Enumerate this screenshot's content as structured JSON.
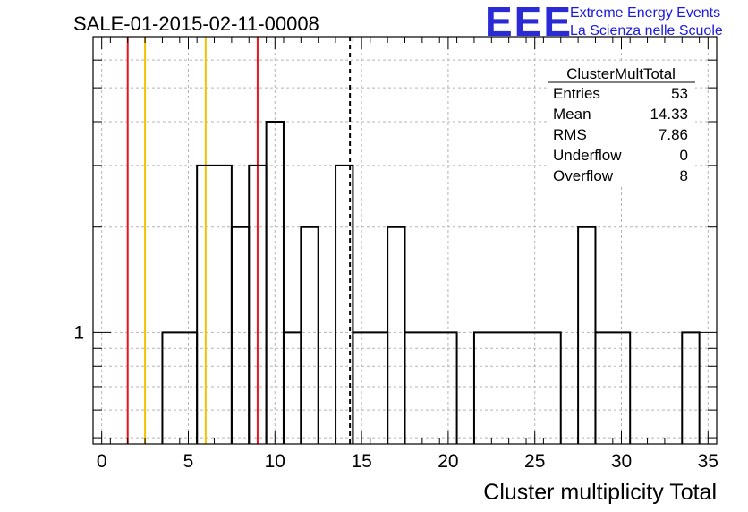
{
  "chart_data": {
    "type": "histogram",
    "title": "SALE-01-2015-02-11-00008",
    "xlabel": "Cluster multiplicity Total",
    "ylabel": "",
    "y_scale": "log",
    "xlim": [
      -0.5,
      35.5
    ],
    "ylim": [
      0.48,
      7.0
    ],
    "grid": true,
    "x_ticks": [
      0,
      5,
      10,
      15,
      20,
      25,
      30,
      35
    ],
    "y_tick_labels": [
      {
        "value": 1,
        "label": "1"
      }
    ],
    "bins": [
      {
        "x0": 3.5,
        "x1": 5.5,
        "count": 1
      },
      {
        "x0": 5.5,
        "x1": 7.5,
        "count": 3
      },
      {
        "x0": 7.5,
        "x1": 8.5,
        "count": 2
      },
      {
        "x0": 8.5,
        "x1": 9.5,
        "count": 3
      },
      {
        "x0": 9.5,
        "x1": 10.5,
        "count": 4
      },
      {
        "x0": 10.5,
        "x1": 11.5,
        "count": 1
      },
      {
        "x0": 11.5,
        "x1": 12.5,
        "count": 2
      },
      {
        "x0": 13.5,
        "x1": 14.5,
        "count": 3
      },
      {
        "x0": 14.5,
        "x1": 16.5,
        "count": 1
      },
      {
        "x0": 16.5,
        "x1": 17.5,
        "count": 2
      },
      {
        "x0": 17.5,
        "x1": 20.5,
        "count": 1
      },
      {
        "x0": 21.5,
        "x1": 26.5,
        "count": 1
      },
      {
        "x0": 27.5,
        "x1": 28.5,
        "count": 2
      },
      {
        "x0": 28.5,
        "x1": 30.5,
        "count": 1
      },
      {
        "x0": 33.5,
        "x1": 34.5,
        "count": 1
      }
    ],
    "vertical_lines": [
      {
        "x": 1.5,
        "color": "#e8141c",
        "style": "solid"
      },
      {
        "x": 2.5,
        "color": "#f2c200",
        "style": "solid"
      },
      {
        "x": 6.0,
        "color": "#f2c200",
        "style": "solid"
      },
      {
        "x": 9.0,
        "color": "#e8141c",
        "style": "solid"
      },
      {
        "x": 14.33,
        "color": "#000000",
        "style": "dashed"
      }
    ],
    "stats_box": {
      "name": "ClusterMultTotal",
      "rows": [
        {
          "label": "Entries",
          "value": "53"
        },
        {
          "label": "Mean",
          "value": "14.33"
        },
        {
          "label": "RMS",
          "value": "7.86"
        },
        {
          "label": "Underflow",
          "value": "0"
        },
        {
          "label": "Overflow",
          "value": "8"
        }
      ]
    }
  },
  "logo": {
    "mark": "EEE",
    "line1": "Extreme Energy Events",
    "line2": "La Scienza nelle Scuole",
    "color": "#2b2bd6"
  }
}
